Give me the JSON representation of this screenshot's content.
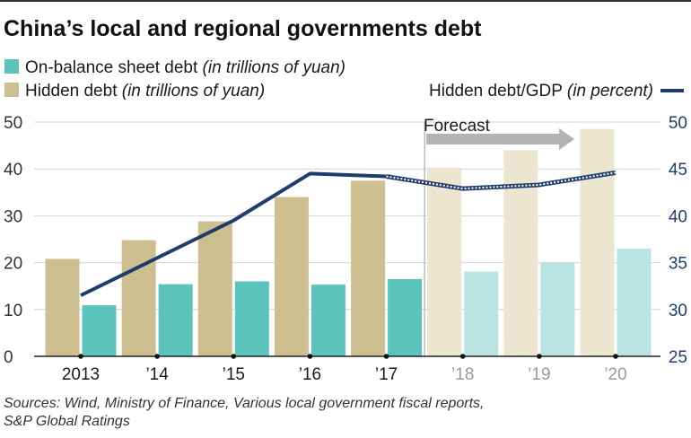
{
  "chart_data": {
    "type": "bar",
    "title": "China’s local and regional governments debt",
    "categories": [
      "2013",
      "’14",
      "’15",
      "’16",
      "’17",
      "’18",
      "’19",
      "’20"
    ],
    "forecast_from_index": 5,
    "forecast_label": "Forecast",
    "series": [
      {
        "name": "On-balance sheet debt",
        "name_note": "(in trillions of yuan)",
        "axis": "left",
        "values": [
          10.9,
          15.4,
          16.0,
          15.3,
          16.5,
          18.1,
          20.0,
          23.0
        ],
        "color": "#5cc4bd",
        "forecast_color": "#b9e4e1"
      },
      {
        "name": "Hidden debt",
        "name_note": "(in trillions of yuan)",
        "axis": "left",
        "values": [
          20.8,
          24.8,
          28.8,
          34.0,
          37.5,
          40.3,
          44.0,
          48.5
        ],
        "color": "#cdbf90",
        "forecast_color": "#ece5d0"
      },
      {
        "name": "Hidden debt/GDP",
        "name_note": "(in percent)",
        "axis": "right",
        "kind": "line",
        "values": [
          31.5,
          35.5,
          39.5,
          44.5,
          44.2,
          42.9,
          43.3,
          44.6
        ],
        "color": "#1e3d6b"
      }
    ],
    "y_left": {
      "min": 0,
      "max": 50,
      "ticks": [
        0,
        10,
        20,
        30,
        40,
        50
      ]
    },
    "y_right": {
      "min": 25,
      "max": 50,
      "ticks": [
        25,
        30,
        35,
        40,
        45,
        50
      ]
    },
    "grid": true,
    "legend_position": "top-left",
    "source": "Sources: Wind, Ministry of Finance, Various local government fiscal reports, S&P Global Ratings",
    "source_lines": [
      "Sources: Wind, Ministry of Finance, Various local government fiscal reports,",
      "S&P Global Ratings"
    ]
  }
}
